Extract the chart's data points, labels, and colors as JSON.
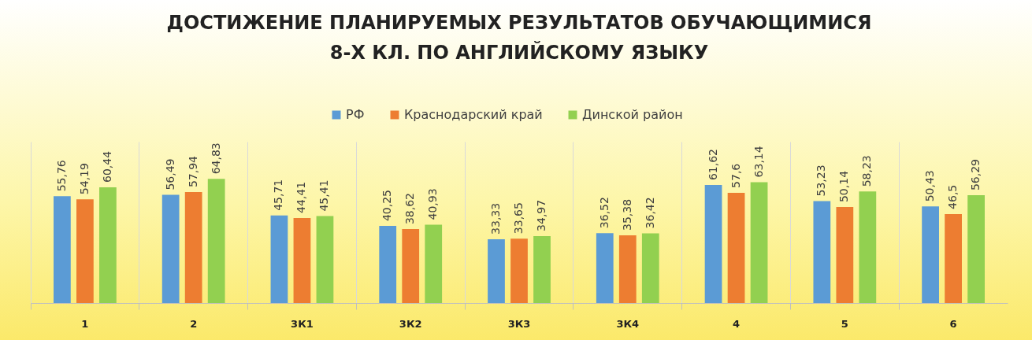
{
  "chart_data": {
    "type": "bar",
    "title": "ДОСТИЖЕНИЕ ПЛАНИРУЕМЫХ РЕЗУЛЬТАТОВ ОБУЧАЮЩИМИСЯ\n8-Х КЛ. ПО АНГЛИЙСКОМУ ЯЗЫКУ",
    "categories": [
      "1",
      "2",
      "3К1",
      "3К2",
      "3К3",
      "3К4",
      "4",
      "5",
      "6"
    ],
    "series": [
      {
        "name": "РФ",
        "color": "#5b9bd5",
        "values": [
          55.76,
          56.49,
          45.71,
          40.25,
          33.33,
          36.52,
          61.62,
          53.23,
          50.43
        ],
        "value_labels": [
          "55,76",
          "56,49",
          "45,71",
          "40,25",
          "33,33",
          "36,52",
          "61,62",
          "53,23",
          "50,43"
        ]
      },
      {
        "name": "Краснодарский край",
        "color": "#ed7d31",
        "values": [
          54.19,
          57.94,
          44.41,
          38.62,
          33.65,
          35.38,
          57.6,
          50.14,
          46.5
        ],
        "value_labels": [
          "54,19",
          "57,94",
          "44,41",
          "38,62",
          "33,65",
          "35,38",
          "57,6",
          "50,14",
          "46,5"
        ]
      },
      {
        "name": "Динской район",
        "color": "#92d050",
        "values": [
          60.44,
          64.83,
          45.41,
          40.93,
          34.97,
          36.42,
          63.14,
          58.23,
          56.29
        ],
        "value_labels": [
          "60,44",
          "64,83",
          "45,41",
          "40,93",
          "34,97",
          "36,42",
          "63,14",
          "58,23",
          "56,29"
        ]
      }
    ],
    "legend": "top",
    "grid": "x"
  }
}
